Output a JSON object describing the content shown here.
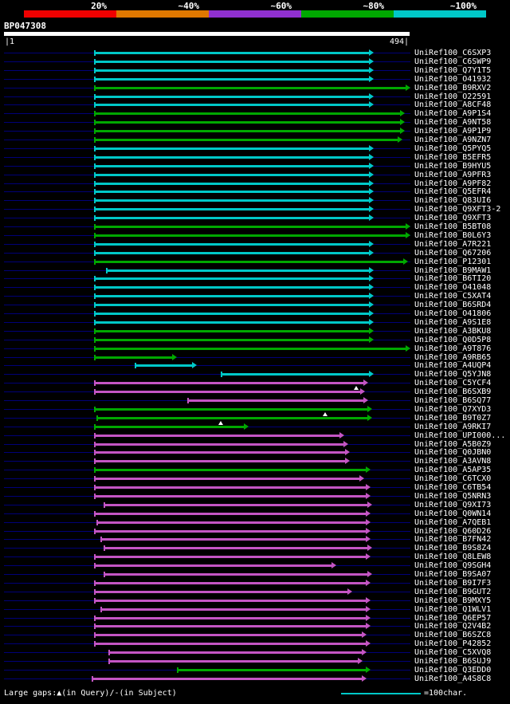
{
  "palette": {
    "background": "#000000",
    "row_line": "#000078",
    "query_bar": "#ffffff",
    "p100": "#00c8c8",
    "p80": "#00a800",
    "p60": "#c455c4"
  },
  "legend": {
    "labels": [
      "20%",
      "~40%",
      "~60%",
      "~80%",
      "~100%"
    ],
    "colors": [
      "#f00000",
      "#e07800",
      "#9030d0",
      "#00a800",
      "#00c8c8"
    ]
  },
  "query": {
    "name": "BP047308",
    "start_label": "|1",
    "end_label": "494|",
    "length": 494
  },
  "footer": {
    "gaps_note": "Large gaps:▲(in Query)/-(in Subject)",
    "scale_note": "=100char."
  },
  "chart_data": {
    "type": "bar",
    "orientation": "horizontal",
    "title": "BP047308",
    "x_range": [
      1,
      494
    ],
    "identity_buckets": {
      "p100": "~100%",
      "p80": "~80%",
      "p60": "~60%"
    },
    "hits": [
      {
        "label": "UniRef100_C6SXP3",
        "identity": "p100",
        "start": 110,
        "end": 450
      },
      {
        "label": "UniRef100_C6SWP9",
        "identity": "p100",
        "start": 110,
        "end": 450
      },
      {
        "label": "UniRef100_Q7Y1T5",
        "identity": "p100",
        "start": 110,
        "end": 450
      },
      {
        "label": "UniRef100_O41932",
        "identity": "p100",
        "start": 110,
        "end": 450
      },
      {
        "label": "UniRef100_B9RXV2",
        "identity": "p80",
        "start": 110,
        "end": 494
      },
      {
        "label": "UniRef100_O22591",
        "identity": "p100",
        "start": 110,
        "end": 450
      },
      {
        "label": "UniRef100_A8CF48",
        "identity": "p100",
        "start": 110,
        "end": 450
      },
      {
        "label": "UniRef100_A9P1S4",
        "identity": "p80",
        "start": 110,
        "end": 487
      },
      {
        "label": "UniRef100_A9NT58",
        "identity": "p80",
        "start": 110,
        "end": 487
      },
      {
        "label": "UniRef100_A9P1P9",
        "identity": "p80",
        "start": 110,
        "end": 487
      },
      {
        "label": "UniRef100_A9NZN7",
        "identity": "p80",
        "start": 110,
        "end": 484
      },
      {
        "label": "UniRef100_Q5PYQ5",
        "identity": "p100",
        "start": 110,
        "end": 450
      },
      {
        "label": "UniRef100_B5EFR5",
        "identity": "p100",
        "start": 110,
        "end": 450
      },
      {
        "label": "UniRef100_B9HYU5",
        "identity": "p100",
        "start": 110,
        "end": 450
      },
      {
        "label": "UniRef100_A9PFR3",
        "identity": "p100",
        "start": 110,
        "end": 450
      },
      {
        "label": "UniRef100_A9PF82",
        "identity": "p100",
        "start": 110,
        "end": 450
      },
      {
        "label": "UniRef100_Q5EFR4",
        "identity": "p100",
        "start": 110,
        "end": 450
      },
      {
        "label": "UniRef100_Q83UI6",
        "identity": "p100",
        "start": 110,
        "end": 450
      },
      {
        "label": "UniRef100_Q9XFT3-2",
        "identity": "p100",
        "start": 110,
        "end": 450
      },
      {
        "label": "UniRef100_Q9XFT3",
        "identity": "p100",
        "start": 110,
        "end": 450
      },
      {
        "label": "UniRef100_B5BT08",
        "identity": "p80",
        "start": 110,
        "end": 494
      },
      {
        "label": "UniRef100_B0L6Y3",
        "identity": "p80",
        "start": 110,
        "end": 494
      },
      {
        "label": "UniRef100_A7R221",
        "identity": "p100",
        "start": 110,
        "end": 450
      },
      {
        "label": "UniRef100_Q67206",
        "identity": "p100",
        "start": 110,
        "end": 450
      },
      {
        "label": "UniRef100_P12301",
        "identity": "p80",
        "start": 110,
        "end": 491
      },
      {
        "label": "UniRef100_B9MAW1",
        "identity": "p100",
        "start": 125,
        "end": 450
      },
      {
        "label": "UniRef100_B6TI20",
        "identity": "p100",
        "start": 110,
        "end": 450
      },
      {
        "label": "UniRef100_O41048",
        "identity": "p100",
        "start": 110,
        "end": 450
      },
      {
        "label": "UniRef100_C5XAT4",
        "identity": "p100",
        "start": 110,
        "end": 450
      },
      {
        "label": "UniRef100_B6SRD4",
        "identity": "p100",
        "start": 110,
        "end": 450
      },
      {
        "label": "UniRef100_O41806",
        "identity": "p100",
        "start": 110,
        "end": 450
      },
      {
        "label": "UniRef100_A9S1E8",
        "identity": "p100",
        "start": 110,
        "end": 450
      },
      {
        "label": "UniRef100_A3BKU8",
        "identity": "p80",
        "start": 110,
        "end": 450
      },
      {
        "label": "UniRef100_Q0D5P8",
        "identity": "p80",
        "start": 110,
        "end": 450
      },
      {
        "label": "UniRef100_A9T876",
        "identity": "p80",
        "start": 110,
        "end": 494
      },
      {
        "label": "UniRef100_A9RB65",
        "identity": "p80",
        "start": 110,
        "end": 211
      },
      {
        "label": "UniRef100_A4UQP4",
        "identity": "p100",
        "start": 160,
        "end": 235
      },
      {
        "label": "UniRef100_Q5YJN8",
        "identity": "p100",
        "start": 264,
        "end": 450
      },
      {
        "label": "UniRef100_C5YCF4",
        "identity": "p60",
        "start": 110,
        "end": 443
      },
      {
        "label": "UniRef100_B6SXB9",
        "identity": "p60",
        "start": 110,
        "end": 439,
        "gaps": [
          428
        ]
      },
      {
        "label": "UniRef100_B6SQ77",
        "identity": "p60",
        "start": 223,
        "end": 443
      },
      {
        "label": "UniRef100_Q7XYD3",
        "identity": "p80",
        "start": 110,
        "end": 448
      },
      {
        "label": "UniRef100_B9T0Z7",
        "identity": "p80",
        "start": 113,
        "end": 448,
        "gaps": [
          391
        ]
      },
      {
        "label": "UniRef100_A9RKI7",
        "identity": "p80",
        "start": 110,
        "end": 298,
        "gaps": [
          264
        ]
      },
      {
        "label": "UniRef100_UPI000...",
        "identity": "p60",
        "start": 110,
        "end": 414
      },
      {
        "label": "UniRef100_A5B0Z9",
        "identity": "p60",
        "start": 110,
        "end": 419
      },
      {
        "label": "UniRef100_Q0JBN0",
        "identity": "p60",
        "start": 110,
        "end": 421
      },
      {
        "label": "UniRef100_A3AVN8",
        "identity": "p60",
        "start": 110,
        "end": 421
      },
      {
        "label": "UniRef100_A5AP35",
        "identity": "p80",
        "start": 110,
        "end": 446
      },
      {
        "label": "UniRef100_C6TCX0",
        "identity": "p60",
        "start": 110,
        "end": 438
      },
      {
        "label": "UniRef100_C6TB54",
        "identity": "p60",
        "start": 110,
        "end": 446
      },
      {
        "label": "UniRef100_Q5NRN3",
        "identity": "p60",
        "start": 110,
        "end": 446
      },
      {
        "label": "UniRef100_Q9XI73",
        "identity": "p60",
        "start": 122,
        "end": 448
      },
      {
        "label": "UniRef100_Q0WN14",
        "identity": "p60",
        "start": 110,
        "end": 446
      },
      {
        "label": "UniRef100_A7QEB1",
        "identity": "p60",
        "start": 113,
        "end": 446
      },
      {
        "label": "UniRef100_Q60D26",
        "identity": "p60",
        "start": 110,
        "end": 446
      },
      {
        "label": "UniRef100_B7FN42",
        "identity": "p60",
        "start": 118,
        "end": 446
      },
      {
        "label": "UniRef100_B9S8Z4",
        "identity": "p60",
        "start": 122,
        "end": 448
      },
      {
        "label": "UniRef100_Q8LEW8",
        "identity": "p60",
        "start": 110,
        "end": 446
      },
      {
        "label": "UniRef100_Q9SGH4",
        "identity": "p60",
        "start": 110,
        "end": 404
      },
      {
        "label": "UniRef100_B9SA07",
        "identity": "p60",
        "start": 122,
        "end": 448
      },
      {
        "label": "UniRef100_B9I7F3",
        "identity": "p60",
        "start": 110,
        "end": 446
      },
      {
        "label": "UniRef100_B9GUT2",
        "identity": "p60",
        "start": 110,
        "end": 423
      },
      {
        "label": "UniRef100_B9MXY5",
        "identity": "p60",
        "start": 110,
        "end": 446
      },
      {
        "label": "UniRef100_Q1WLV1",
        "identity": "p60",
        "start": 118,
        "end": 446
      },
      {
        "label": "UniRef100_Q6EP57",
        "identity": "p60",
        "start": 110,
        "end": 446
      },
      {
        "label": "UniRef100_Q2V4B2",
        "identity": "p60",
        "start": 110,
        "end": 446
      },
      {
        "label": "UniRef100_B6SZC8",
        "identity": "p60",
        "start": 110,
        "end": 441
      },
      {
        "label": "UniRef100_P42852",
        "identity": "p60",
        "start": 110,
        "end": 446
      },
      {
        "label": "UniRef100_C5XVQ8",
        "identity": "p60",
        "start": 128,
        "end": 441
      },
      {
        "label": "UniRef100_B6SUJ9",
        "identity": "p60",
        "start": 128,
        "end": 436
      },
      {
        "label": "UniRef100_Q3EDD0",
        "identity": "p80",
        "start": 211,
        "end": 446
      },
      {
        "label": "UniRef100_A4S8C8",
        "identity": "p60",
        "start": 107,
        "end": 441
      }
    ]
  }
}
